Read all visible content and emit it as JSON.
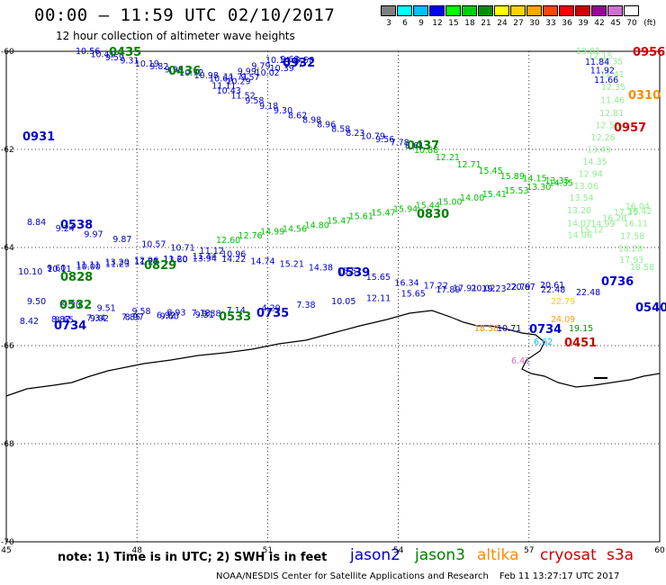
{
  "title": "00:00 – 11:59 UTC 02/10/2017",
  "subtitle": "12 hour collection of altimeter wave heights",
  "legend": {
    "colors": [
      "#7f7f7f",
      "#00ffff",
      "#00bfff",
      "#0000ff",
      "#00ff00",
      "#00d000",
      "#009000",
      "#ffff00",
      "#ffd000",
      "#ffa500",
      "#ff4500",
      "#ff0000",
      "#cc0000",
      "#9c009c",
      "#d070d0",
      "#ffffff"
    ],
    "labels": [
      "3",
      "6",
      "9",
      "12",
      "15",
      "18",
      "21",
      "24",
      "27",
      "30",
      "33",
      "36",
      "39",
      "42",
      "45",
      "70",
      "(ft)"
    ]
  },
  "axes": {
    "x_ticks": [
      "45",
      "48",
      "51",
      "54",
      "57",
      "60"
    ],
    "y_ticks": [
      "-60",
      "-62",
      "-64",
      "-66",
      "-68",
      "-70"
    ]
  },
  "note": "note: 1) Time is in UTC; 2) SWH is in feet",
  "satellites": [
    {
      "name": "jason2",
      "color": "#0000cc"
    },
    {
      "name": "jason3",
      "color": "#008000"
    },
    {
      "name": "altika",
      "color": "#ff8c00"
    },
    {
      "name": "cryosat",
      "color": "#cc0000"
    },
    {
      "name": "s3a",
      "color": "#cc0000"
    }
  ],
  "credit": "NOAA/NESDIS Center for Satellite Applications and Research",
  "timestamp": "Feb 11 13:27:17 UTC 2017",
  "tracks": [
    {
      "id": "jason2_0932_0931",
      "color": "#0000cc",
      "values": [
        "10.56",
        "10.41",
        "9.59",
        "9.31",
        "10.19",
        "9.82",
        "9.98",
        "10.72",
        "10.98",
        "10.63",
        "11.71",
        "9.99",
        "9.79",
        "10.14",
        "9.68",
        "9.58",
        "9.77",
        "10.39",
        "10.02",
        "9.57",
        "10.29",
        "11.11",
        "10.43",
        "11.52",
        "9.58",
        "9.18",
        "9.30",
        "8.62",
        "8.98",
        "8.96",
        "8.58",
        "8.23",
        "10.79",
        "9.56",
        "7.78",
        "8.61"
      ]
    },
    {
      "id": "jason3_0437_0830",
      "color": "#00c000",
      "values": [
        "10.88",
        "12.21",
        "12.71",
        "15.45",
        "15.89",
        "14.15",
        "13.35",
        "14.35",
        "13.30",
        "15.53",
        "15.41",
        "14.00",
        "15.00",
        "15.44",
        "15.94",
        "15.47",
        "15.61",
        "15.47",
        "14.80",
        "14.56",
        "14.99",
        "12.76",
        "12.60"
      ]
    },
    {
      "id": "jason2_0538_0539",
      "color": "#0000cc",
      "values": [
        "8.84",
        "9.24",
        "9.97",
        "9.87",
        "10.57",
        "10.71",
        "11.12",
        "10.96",
        "11.44",
        "11.20",
        "11.27",
        "11.23",
        "10.00",
        "10.11",
        "10.10",
        "9.60",
        "11.11",
        "13.20",
        "12.96",
        "13.60",
        "13.94",
        "14.22",
        "14.74",
        "15.21",
        "14.38",
        "15.51",
        "15.65",
        "16.34",
        "17.22",
        "17.91",
        "19.23",
        "20.67",
        "20.61"
      ]
    },
    {
      "id": "jason2_0735_0736",
      "color": "#0000cc",
      "values": [
        "9.50",
        "9.20",
        "9.51",
        "9.58",
        "8.93",
        "9.38",
        "9.31",
        "9.60",
        "8.97",
        "9.02",
        "8.65",
        "8.42",
        "8.87",
        "7.34",
        "7.85",
        "6.92",
        "7.13",
        "7.14",
        "4.29",
        "7.38",
        "10.05",
        "12.11",
        "15.65",
        "17.89",
        "20.02",
        "22.79",
        "22.48",
        "22.48"
      ]
    },
    {
      "id": "s3a_0956_east",
      "color": "#90ee90",
      "values": [
        "13.01",
        "12.15",
        "12.35",
        "11.41",
        "12.35",
        "11.46",
        "12.81",
        "12.59",
        "12.26",
        "13.49",
        "14.35",
        "12.94",
        "13.06",
        "13.54",
        "13.20",
        "14.07",
        "14.06",
        "15.12",
        "14.99",
        "16.28",
        "17.35",
        "16.04",
        "16.42",
        "16.11",
        "17.58",
        "18.28",
        "17.93",
        "18.58"
      ]
    },
    {
      "id": "jason2_east",
      "color": "#0000cc",
      "values": [
        "11.84",
        "11.92",
        "11.66"
      ]
    }
  ],
  "pass_labels": [
    {
      "text": "0435",
      "color": "#008000"
    },
    {
      "text": "0436",
      "color": "#008000"
    },
    {
      "text": "0932",
      "color": "#0000cc"
    },
    {
      "text": "0931",
      "color": "#0000cc"
    },
    {
      "text": "0437",
      "color": "#008000"
    },
    {
      "text": "0830",
      "color": "#008000"
    },
    {
      "text": "0538",
      "color": "#0000cc"
    },
    {
      "text": "0829",
      "color": "#008000"
    },
    {
      "text": "0828",
      "color": "#008000"
    },
    {
      "text": "0539",
      "color": "#0000cc"
    },
    {
      "text": "0532",
      "color": "#008000"
    },
    {
      "text": "0734",
      "color": "#0000cc"
    },
    {
      "text": "0533",
      "color": "#008000"
    },
    {
      "text": "0735",
      "color": "#0000cc"
    },
    {
      "text": "0736",
      "color": "#0000cc"
    },
    {
      "text": "0734",
      "color": "#0000cc"
    },
    {
      "text": "0956",
      "color": "#cc0000"
    },
    {
      "text": "0310",
      "color": "#ff8c00"
    },
    {
      "text": "0957",
      "color": "#cc0000"
    },
    {
      "text": "0540",
      "color": "#0000cc"
    },
    {
      "text": "0451",
      "color": "#cc0000"
    }
  ],
  "misc_values": [
    {
      "text": "6.62",
      "color": "#00bfff"
    },
    {
      "text": "10.71",
      "color": "#0000cc"
    },
    {
      "text": "18.58",
      "color": "#ff8c00"
    },
    {
      "text": "19.15",
      "color": "#009000"
    },
    {
      "text": "24.09",
      "color": "#ffa500"
    },
    {
      "text": "22.79",
      "color": "#ffd000"
    },
    {
      "text": "6.41",
      "color": "#d070d0"
    }
  ]
}
